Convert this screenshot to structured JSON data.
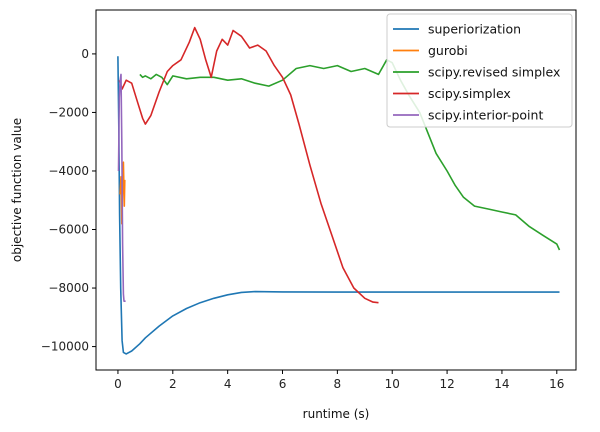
{
  "chart_data": {
    "type": "line",
    "title": "",
    "xlabel": "runtime (s)",
    "ylabel": "objective function value",
    "xlim": [
      -0.8,
      16.7
    ],
    "ylim": [
      -10800,
      1500
    ],
    "xticks": [
      0,
      2,
      4,
      6,
      8,
      10,
      12,
      14,
      16
    ],
    "yticks": [
      -10000,
      -8000,
      -6000,
      -4000,
      -2000,
      0
    ],
    "ytick_labels": [
      "−10000",
      "−8000",
      "−6000",
      "−4000",
      "−2000",
      "0"
    ],
    "grid": false,
    "legend_position": "upper right",
    "series": [
      {
        "name": "superiorization",
        "color": "#1f77b4",
        "points": [
          [
            0.0,
            -80
          ],
          [
            0.03,
            -2500
          ],
          [
            0.06,
            -5500
          ],
          [
            0.1,
            -8000
          ],
          [
            0.15,
            -9800
          ],
          [
            0.2,
            -10200
          ],
          [
            0.3,
            -10250
          ],
          [
            0.5,
            -10150
          ],
          [
            0.8,
            -9900
          ],
          [
            1.0,
            -9700
          ],
          [
            1.5,
            -9300
          ],
          [
            2.0,
            -8950
          ],
          [
            2.5,
            -8700
          ],
          [
            3.0,
            -8500
          ],
          [
            3.5,
            -8350
          ],
          [
            4.0,
            -8230
          ],
          [
            4.5,
            -8150
          ],
          [
            5.0,
            -8120
          ],
          [
            6.0,
            -8130
          ],
          [
            8.0,
            -8140
          ],
          [
            10.0,
            -8140
          ],
          [
            12.0,
            -8140
          ],
          [
            14.0,
            -8140
          ],
          [
            16.1,
            -8140
          ]
        ]
      },
      {
        "name": "gurobi",
        "color": "#ff7f0e",
        "points": [
          [
            0.08,
            -4800
          ],
          [
            0.11,
            -4200
          ],
          [
            0.14,
            -5800
          ],
          [
            0.17,
            -4500
          ],
          [
            0.2,
            -3700
          ],
          [
            0.23,
            -5200
          ],
          [
            0.25,
            -4300
          ]
        ]
      },
      {
        "name": "scipy.revised simplex",
        "color": "#2ca02c",
        "points": [
          [
            0.8,
            -700
          ],
          [
            0.9,
            -800
          ],
          [
            1.0,
            -750
          ],
          [
            1.2,
            -850
          ],
          [
            1.4,
            -700
          ],
          [
            1.6,
            -800
          ],
          [
            1.8,
            -1050
          ],
          [
            2.0,
            -750
          ],
          [
            2.5,
            -850
          ],
          [
            3.0,
            -800
          ],
          [
            3.5,
            -800
          ],
          [
            4.0,
            -900
          ],
          [
            4.5,
            -850
          ],
          [
            5.0,
            -1000
          ],
          [
            5.5,
            -1100
          ],
          [
            6.0,
            -900
          ],
          [
            6.5,
            -500
          ],
          [
            7.0,
            -400
          ],
          [
            7.5,
            -500
          ],
          [
            8.0,
            -400
          ],
          [
            8.5,
            -600
          ],
          [
            9.0,
            -500
          ],
          [
            9.5,
            -700
          ],
          [
            9.8,
            -200
          ],
          [
            10.0,
            -300
          ],
          [
            10.3,
            -900
          ],
          [
            10.6,
            -1400
          ],
          [
            11.0,
            -2000
          ],
          [
            11.3,
            -2700
          ],
          [
            11.6,
            -3400
          ],
          [
            12.0,
            -4000
          ],
          [
            12.3,
            -4500
          ],
          [
            12.6,
            -4900
          ],
          [
            13.0,
            -5200
          ],
          [
            13.5,
            -5300
          ],
          [
            14.0,
            -5400
          ],
          [
            14.5,
            -5500
          ],
          [
            15.0,
            -5900
          ],
          [
            15.5,
            -6200
          ],
          [
            16.0,
            -6500
          ],
          [
            16.1,
            -6700
          ]
        ]
      },
      {
        "name": "scipy.simplex",
        "color": "#d62728",
        "points": [
          [
            0.05,
            -900
          ],
          [
            0.15,
            -1200
          ],
          [
            0.3,
            -900
          ],
          [
            0.5,
            -1000
          ],
          [
            0.7,
            -1600
          ],
          [
            0.9,
            -2200
          ],
          [
            1.0,
            -2400
          ],
          [
            1.2,
            -2100
          ],
          [
            1.5,
            -1300
          ],
          [
            1.8,
            -600
          ],
          [
            2.0,
            -400
          ],
          [
            2.3,
            -200
          ],
          [
            2.6,
            400
          ],
          [
            2.8,
            900
          ],
          [
            3.0,
            500
          ],
          [
            3.2,
            -200
          ],
          [
            3.4,
            -800
          ],
          [
            3.6,
            100
          ],
          [
            3.8,
            500
          ],
          [
            4.0,
            300
          ],
          [
            4.2,
            800
          ],
          [
            4.5,
            600
          ],
          [
            4.8,
            200
          ],
          [
            5.1,
            300
          ],
          [
            5.4,
            100
          ],
          [
            5.7,
            -400
          ],
          [
            6.0,
            -800
          ],
          [
            6.3,
            -1400
          ],
          [
            6.6,
            -2400
          ],
          [
            7.0,
            -3800
          ],
          [
            7.4,
            -5100
          ],
          [
            7.8,
            -6200
          ],
          [
            8.2,
            -7300
          ],
          [
            8.6,
            -8000
          ],
          [
            9.0,
            -8350
          ],
          [
            9.3,
            -8480
          ],
          [
            9.5,
            -8500
          ]
        ]
      },
      {
        "name": "scipy.interior-point",
        "color": "#9467bd",
        "points": [
          [
            0.02,
            -4000
          ],
          [
            0.05,
            -1500
          ],
          [
            0.08,
            -900
          ],
          [
            0.11,
            -700
          ],
          [
            0.14,
            -3000
          ],
          [
            0.17,
            -6500
          ],
          [
            0.2,
            -8200
          ],
          [
            0.22,
            -8450
          ],
          [
            0.28,
            -8450
          ]
        ]
      }
    ]
  }
}
